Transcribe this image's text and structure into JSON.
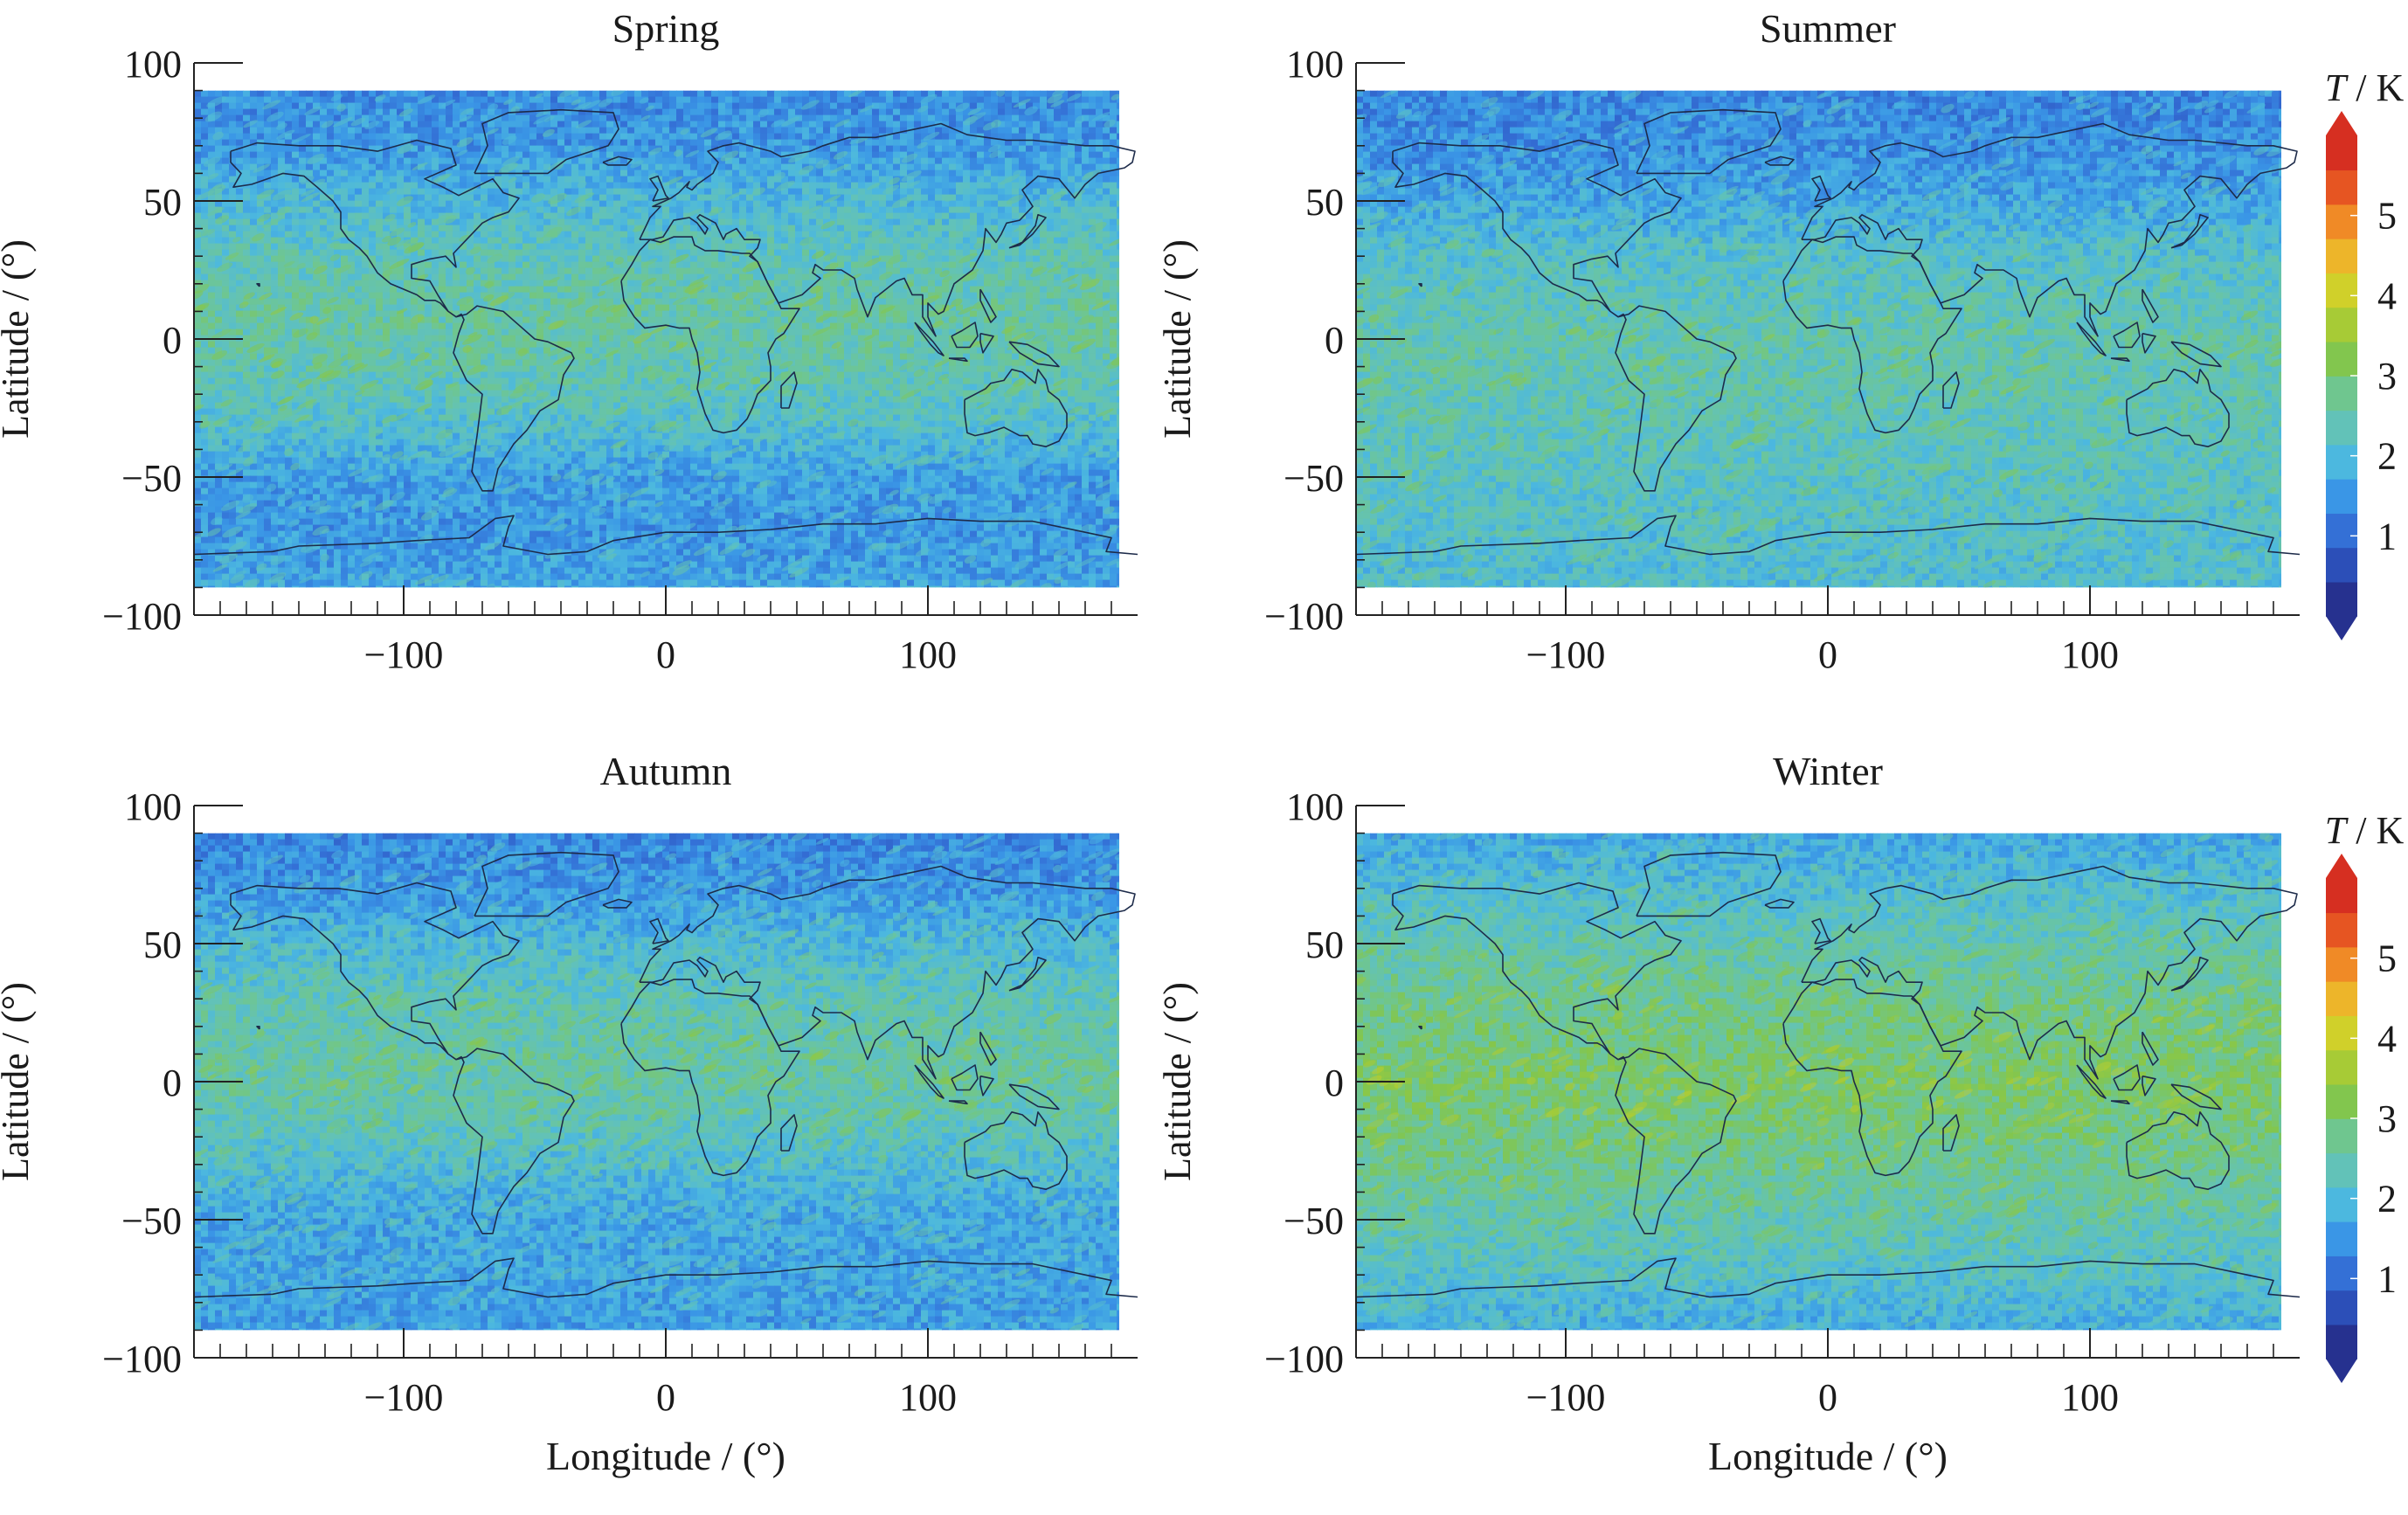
{
  "figure": {
    "panels": [
      {
        "title": "Spring",
        "show_xlabel": false,
        "show_colorbar": false,
        "ylabel": "Latitude / (°)",
        "xlabel": "Longitude / (°)"
      },
      {
        "title": "Summer",
        "show_xlabel": false,
        "show_colorbar": true,
        "ylabel": "Latitude / (°)",
        "xlabel": "Longitude / (°)"
      },
      {
        "title": "Autumn",
        "show_xlabel": true,
        "show_colorbar": false,
        "ylabel": "Latitude / (°)",
        "xlabel": "Longitude / (°)"
      },
      {
        "title": "Winter",
        "show_xlabel": true,
        "show_colorbar": true,
        "ylabel": "Latitude / (°)",
        "xlabel": "Longitude / (°)"
      }
    ],
    "colorbar": {
      "label_italic": "T",
      "label_rest": " / K",
      "ticks": [
        1,
        2,
        3,
        4,
        5
      ],
      "range": [
        0,
        6
      ],
      "extend": "both",
      "colors": [
        "#26318f",
        "#2c4fb8",
        "#3470d6",
        "#3a96e6",
        "#4cb8df",
        "#62c2b8",
        "#6fc68f",
        "#82c64e",
        "#a7cb36",
        "#d0d02a",
        "#edb52a",
        "#f08a26",
        "#e65522",
        "#d62f21"
      ]
    }
  },
  "chart_data": [
    {
      "type": "heatmap",
      "title": "Spring",
      "xlabel": "",
      "ylabel": "Latitude / (°)",
      "xlim": [
        -180,
        180
      ],
      "ylim": [
        -100,
        100
      ],
      "xticks": [
        -100,
        0,
        100
      ],
      "yticks": [
        -100,
        -50,
        0,
        50,
        100
      ],
      "data_extent_lat": [
        -90,
        90
      ],
      "value_units": "K",
      "zonal_profile": {
        "lat": [
          90,
          70,
          50,
          30,
          10,
          0,
          -10,
          -30,
          -50,
          -70,
          -90
        ],
        "T": [
          1.3,
          1.4,
          1.9,
          2.3,
          2.5,
          2.5,
          2.4,
          2.1,
          1.5,
          1.4,
          1.6
        ]
      }
    },
    {
      "type": "heatmap",
      "title": "Summer",
      "xlabel": "",
      "ylabel": "Latitude / (°)",
      "xlim": [
        -180,
        180
      ],
      "ylim": [
        -100,
        100
      ],
      "xticks": [
        -100,
        0,
        100
      ],
      "yticks": [
        -100,
        -50,
        0,
        50,
        100
      ],
      "data_extent_lat": [
        -90,
        90
      ],
      "value_units": "K",
      "zonal_profile": {
        "lat": [
          90,
          70,
          50,
          30,
          10,
          0,
          -10,
          -30,
          -50,
          -70,
          -90
        ],
        "T": [
          1.2,
          1.3,
          1.6,
          2.1,
          2.3,
          2.4,
          2.4,
          2.3,
          2.2,
          2.1,
          2.0
        ]
      }
    },
    {
      "type": "heatmap",
      "title": "Autumn",
      "xlabel": "Longitude / (°)",
      "ylabel": "Latitude / (°)",
      "xlim": [
        -180,
        180
      ],
      "ylim": [
        -100,
        100
      ],
      "xticks": [
        -100,
        0,
        100
      ],
      "yticks": [
        -100,
        -50,
        0,
        50,
        100
      ],
      "data_extent_lat": [
        -90,
        90
      ],
      "value_units": "K",
      "zonal_profile": {
        "lat": [
          90,
          70,
          50,
          30,
          10,
          0,
          -10,
          -30,
          -50,
          -70,
          -90
        ],
        "T": [
          1.2,
          1.4,
          1.9,
          2.3,
          2.5,
          2.5,
          2.4,
          2.0,
          1.6,
          1.6,
          1.5
        ]
      }
    },
    {
      "type": "heatmap",
      "title": "Winter",
      "xlabel": "Longitude / (°)",
      "ylabel": "Latitude / (°)",
      "xlim": [
        -180,
        180
      ],
      "ylim": [
        -100,
        100
      ],
      "xticks": [
        -100,
        0,
        100
      ],
      "yticks": [
        -100,
        -50,
        0,
        50,
        100
      ],
      "data_extent_lat": [
        -90,
        90
      ],
      "value_units": "K",
      "zonal_profile": {
        "lat": [
          90,
          70,
          50,
          30,
          10,
          0,
          -10,
          -30,
          -50,
          -70,
          -90
        ],
        "T": [
          1.6,
          2.0,
          2.4,
          2.7,
          2.9,
          3.0,
          2.9,
          2.7,
          2.4,
          2.1,
          1.7
        ]
      }
    }
  ]
}
